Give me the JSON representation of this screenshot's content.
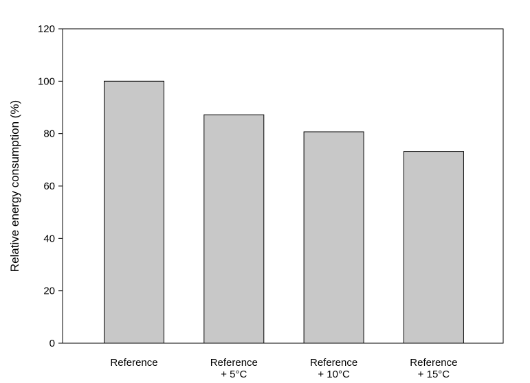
{
  "chart_data": {
    "type": "bar",
    "categories": [
      [
        "Reference"
      ],
      [
        "Reference",
        "+ 5°C"
      ],
      [
        "Reference",
        "+ 10°C"
      ],
      [
        "Reference",
        "+ 15°C"
      ]
    ],
    "values": [
      100,
      87.2,
      80.7,
      73.2
    ],
    "title": "",
    "xlabel": "",
    "ylabel": "Relative energy consumption (%)",
    "ylim": [
      0,
      120
    ],
    "yticks": [
      0,
      20,
      40,
      60,
      80,
      100,
      120
    ],
    "grid": false,
    "legend": "none",
    "colors": {
      "bar_fill": "#c8c8c8",
      "bar_stroke": "#000000",
      "axis": "#000000"
    }
  }
}
